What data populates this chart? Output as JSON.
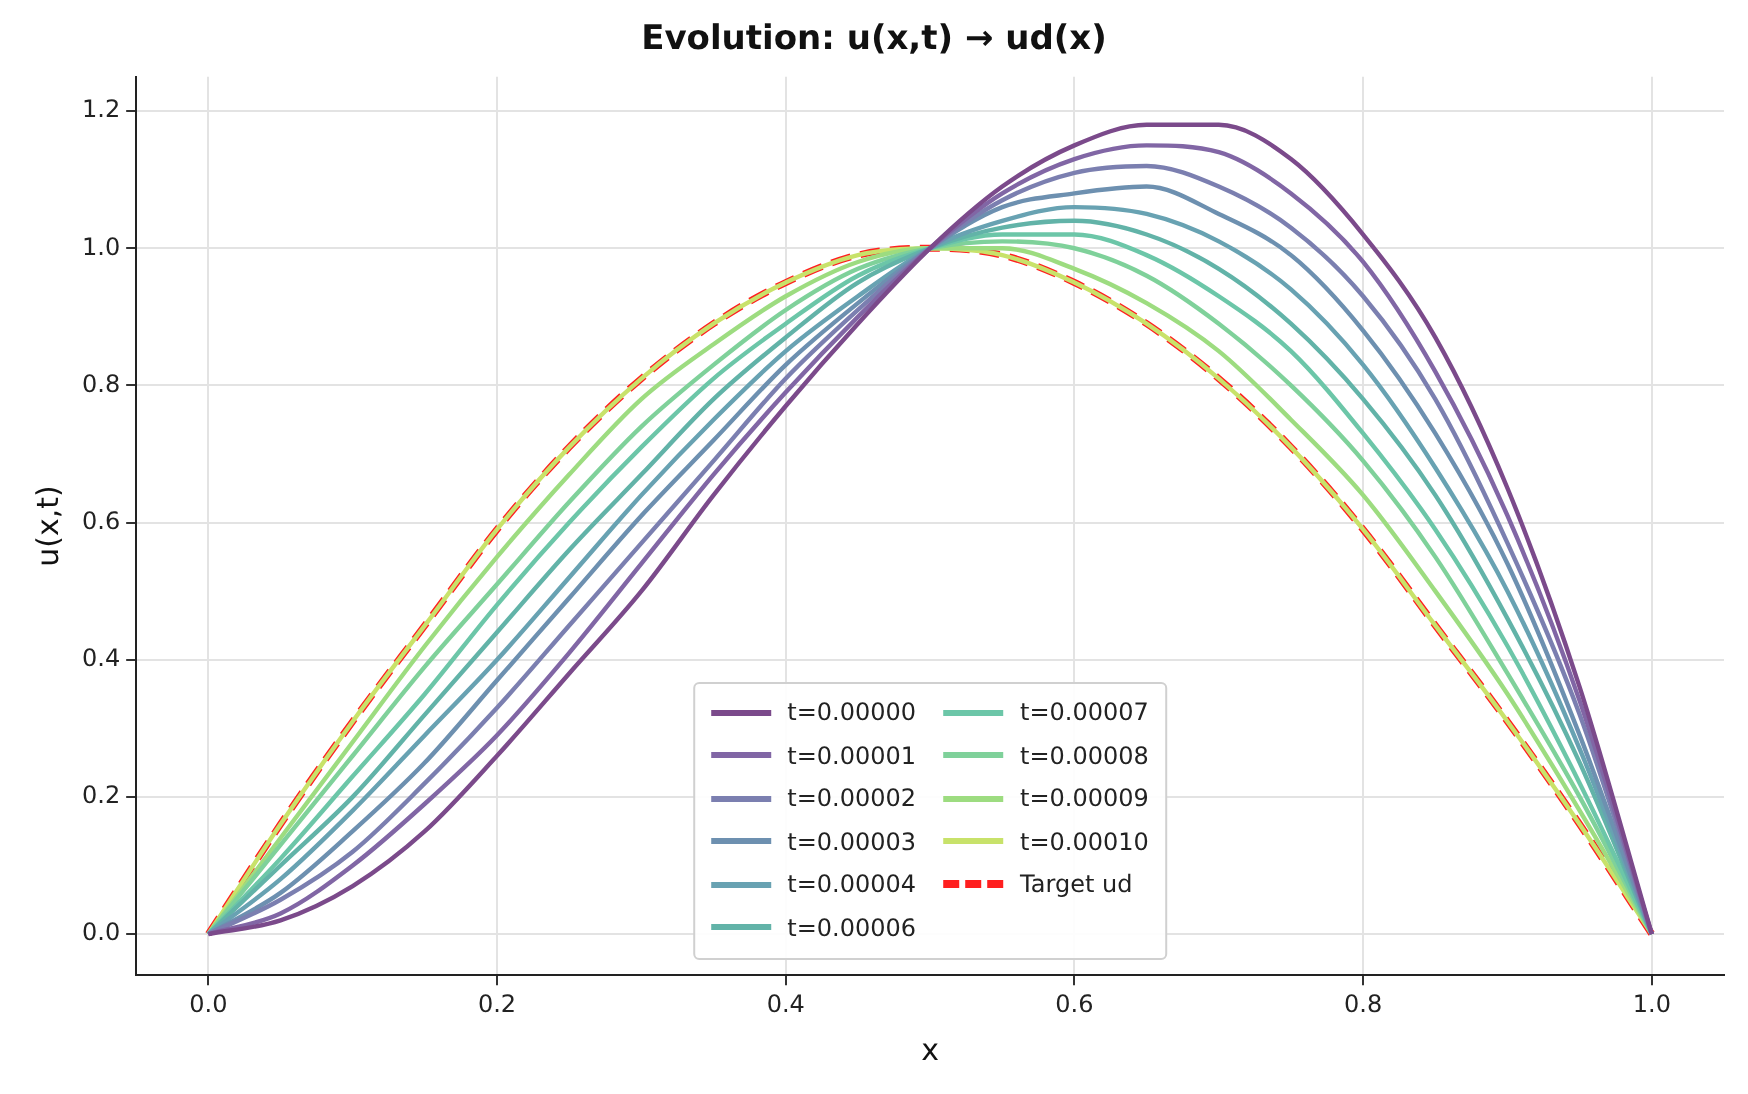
{
  "chart_data": {
    "type": "line",
    "title": "Evolution: u(x,t) → ud(x)",
    "xlabel": "x",
    "ylabel": "u(x,t)",
    "x": [
      0,
      0.05,
      0.1,
      0.15,
      0.2,
      0.25,
      0.3,
      0.35,
      0.4,
      0.45,
      0.5,
      0.55,
      0.6,
      0.65,
      0.7,
      0.75,
      0.8,
      0.85,
      0.9,
      0.95,
      1
    ],
    "xlim": [
      -0.05,
      1.05
    ],
    "ylim": [
      -0.06,
      1.25
    ],
    "xticks": [
      {
        "value": 0,
        "label": "0.0"
      },
      {
        "value": 0.2,
        "label": "0.2"
      },
      {
        "value": 0.4,
        "label": "0.4"
      },
      {
        "value": 0.6,
        "label": "0.6"
      },
      {
        "value": 0.8,
        "label": "0.8"
      },
      {
        "value": 1,
        "label": "1.0"
      }
    ],
    "yticks": [
      {
        "value": 0,
        "label": "0.0"
      },
      {
        "value": 0.2,
        "label": "0.2"
      },
      {
        "value": 0.4,
        "label": "0.4"
      },
      {
        "value": 0.6,
        "label": "0.6"
      },
      {
        "value": 0.8,
        "label": "0.8"
      },
      {
        "value": 1,
        "label": "1.0"
      },
      {
        "value": 1.2,
        "label": "1.2"
      }
    ],
    "grid": true,
    "legend": "bottom",
    "marker": "none",
    "line_style": "solid",
    "series": [
      {
        "name": "t=0.00000",
        "color": "#7b4a8b",
        "values": [
          0,
          0.02,
          0.07,
          0.15,
          0.26,
          0.38,
          0.5,
          0.64,
          0.77,
          0.89,
          1,
          1.09,
          1.15,
          1.18,
          1.18,
          1.13,
          1.02,
          0.87,
          0.65,
          0.36,
          0
        ]
      },
      {
        "name": "t=0.00001",
        "color": "#8166a5",
        "values": [
          0,
          0.03,
          0.1,
          0.19,
          0.29,
          0.41,
          0.54,
          0.67,
          0.79,
          0.9,
          1,
          1.08,
          1.13,
          1.15,
          1.14,
          1.08,
          0.98,
          0.82,
          0.61,
          0.34,
          0
        ]
      },
      {
        "name": "t=0.00002",
        "color": "#7b7fb0",
        "values": [
          0,
          0.05,
          0.12,
          0.22,
          0.33,
          0.45,
          0.57,
          0.69,
          0.81,
          0.91,
          1,
          1.07,
          1.11,
          1.12,
          1.09,
          1.03,
          0.93,
          0.78,
          0.57,
          0.32,
          0
        ]
      },
      {
        "name": "t=0.00003",
        "color": "#6d90b0",
        "values": [
          0,
          0.06,
          0.15,
          0.25,
          0.37,
          0.49,
          0.61,
          0.72,
          0.83,
          0.92,
          1,
          1.06,
          1.08,
          1.09,
          1.05,
          0.99,
          0.88,
          0.73,
          0.54,
          0.29,
          0
        ]
      },
      {
        "name": "t=0.00004",
        "color": "#68a2b2",
        "values": [
          0,
          0.08,
          0.18,
          0.29,
          0.4,
          0.52,
          0.64,
          0.75,
          0.85,
          0.93,
          1,
          1.04,
          1.06,
          1.05,
          1.01,
          0.94,
          0.83,
          0.68,
          0.5,
          0.27,
          0
        ]
      },
      {
        "name": "t=0.00006",
        "color": "#62b3a8",
        "values": [
          0,
          0.1,
          0.2,
          0.32,
          0.44,
          0.56,
          0.67,
          0.78,
          0.87,
          0.95,
          1,
          1.03,
          1.04,
          1.02,
          0.97,
          0.89,
          0.78,
          0.64,
          0.46,
          0.25,
          0
        ]
      },
      {
        "name": "t=0.00007",
        "color": "#6cc6a8",
        "values": [
          0,
          0.11,
          0.23,
          0.35,
          0.48,
          0.6,
          0.71,
          0.81,
          0.89,
          0.96,
          1,
          1.02,
          1.02,
          0.99,
          0.93,
          0.85,
          0.73,
          0.59,
          0.42,
          0.22,
          0
        ]
      },
      {
        "name": "t=0.00008",
        "color": "#7fd19a",
        "values": [
          0,
          0.13,
          0.26,
          0.39,
          0.51,
          0.63,
          0.74,
          0.83,
          0.91,
          0.97,
          1,
          1.01,
          1,
          0.96,
          0.89,
          0.8,
          0.69,
          0.55,
          0.38,
          0.2,
          0
        ]
      },
      {
        "name": "t=0.00009",
        "color": "#9ddc80",
        "values": [
          0,
          0.14,
          0.28,
          0.42,
          0.55,
          0.67,
          0.78,
          0.86,
          0.93,
          0.98,
          1,
          1,
          0.97,
          0.92,
          0.85,
          0.75,
          0.64,
          0.5,
          0.35,
          0.18,
          0
        ]
      },
      {
        "name": "t=0.00010",
        "color": "#c8e26a",
        "values": [
          0,
          0.16,
          0.31,
          0.45,
          0.59,
          0.71,
          0.81,
          0.89,
          0.95,
          0.99,
          1,
          0.99,
          0.95,
          0.89,
          0.81,
          0.71,
          0.59,
          0.45,
          0.31,
          0.16,
          0
        ]
      },
      {
        "name": "Target ud",
        "color": "#ff1f1f",
        "line_style": "dashed",
        "values": [
          0,
          0.16,
          0.31,
          0.45,
          0.59,
          0.71,
          0.81,
          0.89,
          0.95,
          0.99,
          1,
          0.99,
          0.95,
          0.89,
          0.81,
          0.71,
          0.59,
          0.45,
          0.31,
          0.16,
          0
        ]
      }
    ]
  }
}
